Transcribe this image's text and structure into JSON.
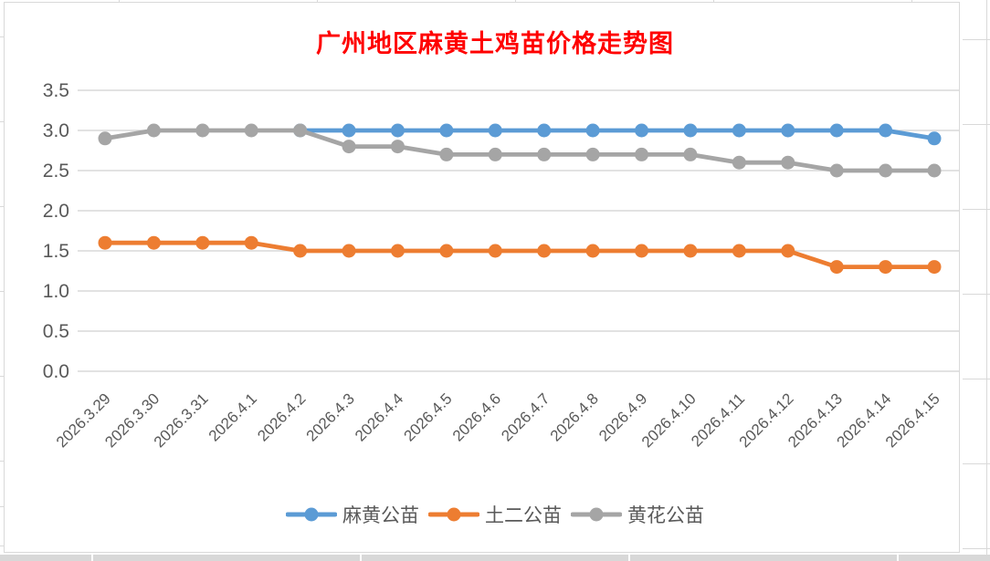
{
  "title": {
    "text": "广州地区麻黄土鸡苗价格走势图",
    "color": "#FF0000"
  },
  "chart_data": {
    "type": "line",
    "title": "广州地区麻黄土鸡苗价格走势图",
    "categories": [
      "2026.3.29",
      "2026.3.30",
      "2026.3.31",
      "2026.4.1",
      "2026.4.2",
      "2026.4.3",
      "2026.4.4",
      "2026.4.5",
      "2026.4.6",
      "2026.4.7",
      "2026.4.8",
      "2026.4.9",
      "2026.4.10",
      "2026.4.11",
      "2026.4.12",
      "2026.4.13",
      "2026.4.14",
      "2026.4.15"
    ],
    "series": [
      {
        "name": "麻黄公苗",
        "color": "#5B9BD5",
        "values": [
          null,
          null,
          null,
          null,
          3.0,
          3.0,
          3.0,
          3.0,
          3.0,
          3.0,
          3.0,
          3.0,
          3.0,
          3.0,
          3.0,
          3.0,
          3.0,
          2.9
        ]
      },
      {
        "name": "土二公苗",
        "color": "#ED7D31",
        "values": [
          1.6,
          1.6,
          1.6,
          1.6,
          1.5,
          1.5,
          1.5,
          1.5,
          1.5,
          1.5,
          1.5,
          1.5,
          1.5,
          1.5,
          1.5,
          1.3,
          1.3,
          1.3
        ]
      },
      {
        "name": "黄花公苗",
        "color": "#A5A5A5",
        "values": [
          2.9,
          3.0,
          3.0,
          3.0,
          3.0,
          2.8,
          2.8,
          2.7,
          2.7,
          2.7,
          2.7,
          2.7,
          2.7,
          2.6,
          2.6,
          2.5,
          2.5,
          2.5
        ]
      }
    ],
    "xlabel": "",
    "ylabel": "",
    "ylim": [
      0.0,
      3.5
    ],
    "ytick_step": 0.5,
    "ytick_labels": [
      "0.0",
      "0.5",
      "1.0",
      "1.5",
      "2.0",
      "2.5",
      "3.0",
      "3.5"
    ],
    "grid": true,
    "legend_position": "bottom",
    "axis_text_color": "#595959",
    "gridline_color": "#D9D9D9"
  }
}
